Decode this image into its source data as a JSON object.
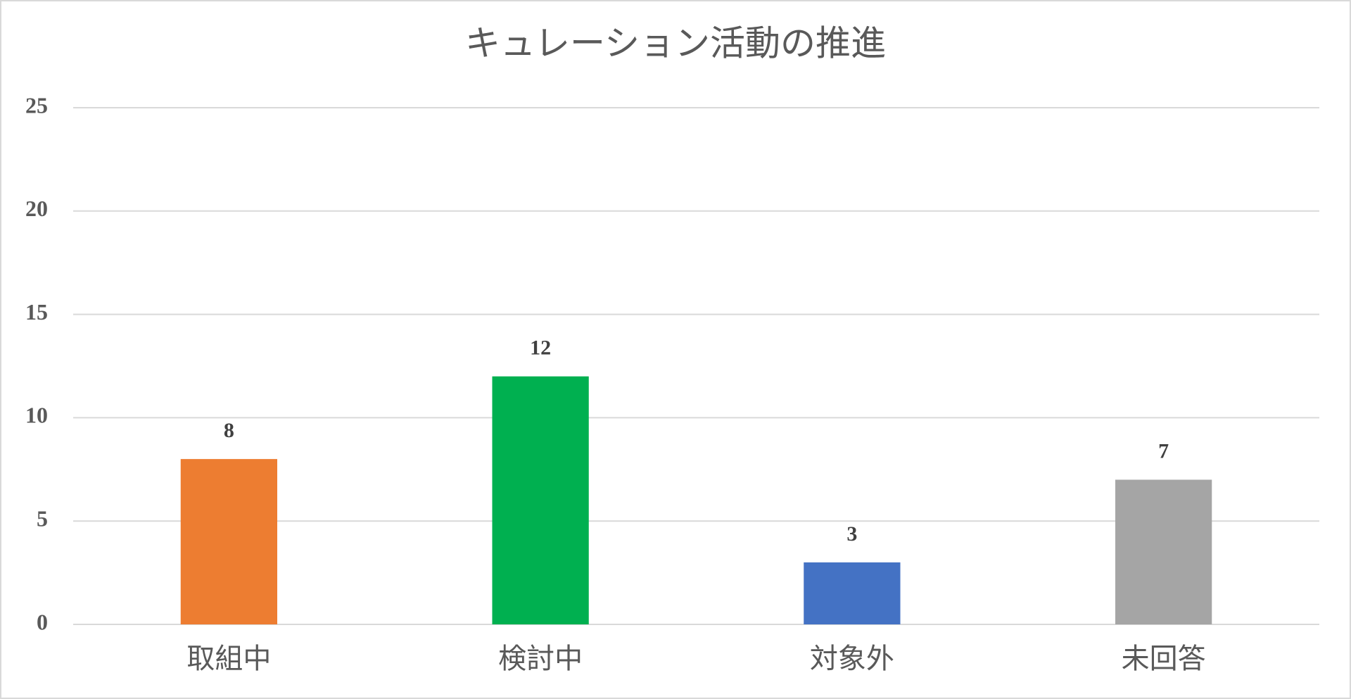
{
  "chart_data": {
    "type": "bar",
    "title": "キュレーション活動の推進",
    "categories": [
      "取組中",
      "検討中",
      "対象外",
      "未回答"
    ],
    "values": [
      8,
      12,
      3,
      7
    ],
    "colors": [
      "#ED7D31",
      "#00B050",
      "#4472C4",
      "#A5A5A5"
    ],
    "ylim": [
      0,
      25
    ],
    "yticks": [
      0,
      5,
      10,
      15,
      20,
      25
    ],
    "grid": true,
    "data_labels": true
  }
}
